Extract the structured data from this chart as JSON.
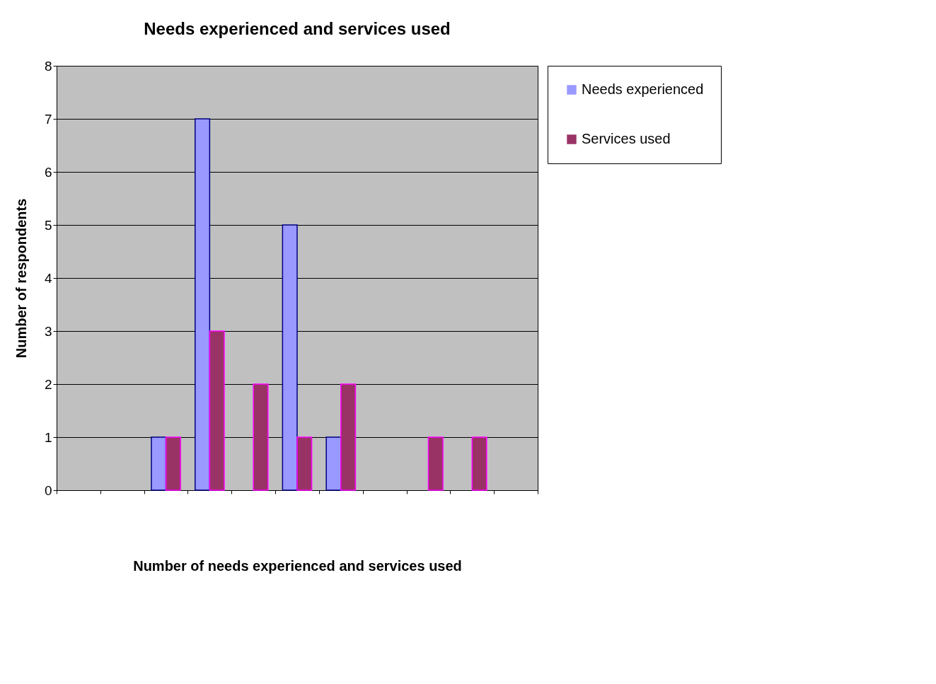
{
  "chart_data": {
    "type": "bar",
    "title": "Needs experienced and services used",
    "xlabel": "Number of needs experienced and services used",
    "ylabel": "Number of respondents",
    "categories": [
      null,
      null,
      null,
      null,
      null,
      null,
      null,
      null,
      null,
      null,
      null
    ],
    "series": [
      {
        "name": "Needs experienced",
        "color": "#9999ff",
        "values": [
          null,
          null,
          1,
          7,
          null,
          5,
          1,
          null,
          null,
          null,
          null
        ]
      },
      {
        "name": "Services used",
        "color": "#993366",
        "values": [
          null,
          null,
          1,
          3,
          2,
          1,
          2,
          null,
          1,
          1,
          null
        ]
      }
    ],
    "ylim": [
      0,
      8
    ],
    "yticks": [
      0,
      1,
      2,
      3,
      4,
      5,
      6,
      7,
      8
    ],
    "grid": "y",
    "legend": "right"
  }
}
